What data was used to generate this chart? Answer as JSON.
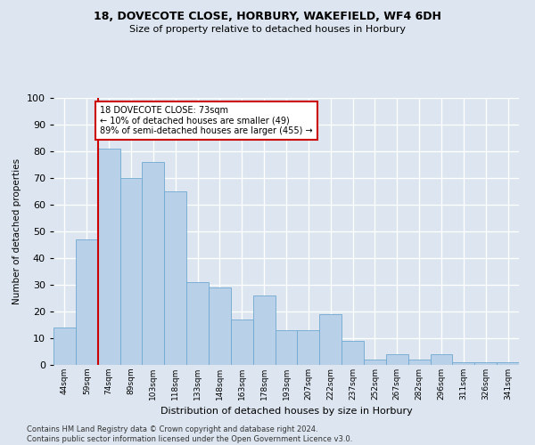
{
  "title1": "18, DOVECOTE CLOSE, HORBURY, WAKEFIELD, WF4 6DH",
  "title2": "Size of property relative to detached houses in Horbury",
  "xlabel": "Distribution of detached houses by size in Horbury",
  "ylabel": "Number of detached properties",
  "categories": [
    "44sqm",
    "59sqm",
    "74sqm",
    "89sqm",
    "103sqm",
    "118sqm",
    "133sqm",
    "148sqm",
    "163sqm",
    "178sqm",
    "193sqm",
    "207sqm",
    "222sqm",
    "237sqm",
    "252sqm",
    "267sqm",
    "282sqm",
    "296sqm",
    "311sqm",
    "326sqm",
    "341sqm"
  ],
  "values": [
    14,
    47,
    81,
    70,
    76,
    65,
    31,
    29,
    17,
    26,
    13,
    13,
    19,
    9,
    2,
    4,
    2,
    4,
    1,
    1,
    1
  ],
  "bar_color": "#b8d0e8",
  "bar_edge_color": "#6fa8d0",
  "bar_width": 1.0,
  "property_line_x": 1.5,
  "annotation_title": "18 DOVECOTE CLOSE: 73sqm",
  "annotation_line1": "← 10% of detached houses are smaller (49)",
  "annotation_line2": "89% of semi-detached houses are larger (455) →",
  "annotation_box_color": "#ffffff",
  "annotation_box_edge_color": "#cc0000",
  "line_color": "#cc0000",
  "ylim": [
    0,
    100
  ],
  "bg_color": "#dde6f0",
  "grid_color": "#ffffff",
  "footer1": "Contains HM Land Registry data © Crown copyright and database right 2024.",
  "footer2": "Contains public sector information licensed under the Open Government Licence v3.0."
}
